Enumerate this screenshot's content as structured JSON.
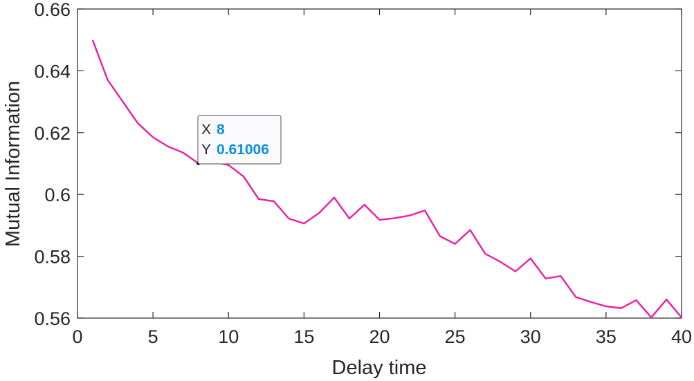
{
  "chart_data": {
    "type": "line",
    "title": "",
    "xlabel": "Delay time",
    "ylabel": "Mutual Information",
    "xlim": [
      0,
      40
    ],
    "ylim": [
      0.56,
      0.66
    ],
    "xticks": [
      0,
      5,
      10,
      15,
      20,
      25,
      30,
      35,
      40
    ],
    "xtick_labels": [
      "0",
      "5",
      "10",
      "15",
      "20",
      "25",
      "30",
      "35",
      "40"
    ],
    "yticks": [
      0.56,
      0.58,
      0.6,
      0.62,
      0.64,
      0.66
    ],
    "ytick_labels": [
      "0.56",
      "0.58",
      "0.6",
      "0.62",
      "0.64",
      "0.66"
    ],
    "grid": false,
    "series": [
      {
        "color": "#ec1ca4",
        "x": [
          1,
          2,
          3,
          4,
          5,
          6,
          7,
          8,
          9,
          10,
          11,
          12,
          13,
          14,
          15,
          16,
          17,
          18,
          19,
          20,
          21,
          22,
          23,
          24,
          25,
          26,
          27,
          28,
          29,
          30,
          31,
          32,
          33,
          34,
          35,
          36,
          37,
          38,
          39,
          40
        ],
        "y": [
          0.65,
          0.637,
          0.63,
          0.623,
          0.6185,
          0.6155,
          0.6135,
          0.61006,
          0.6105,
          0.6095,
          0.6058,
          0.5985,
          0.5978,
          0.5922,
          0.5906,
          0.594,
          0.599,
          0.5922,
          0.5967,
          0.5918,
          0.5923,
          0.5932,
          0.5948,
          0.5865,
          0.584,
          0.5885,
          0.5808,
          0.5782,
          0.5751,
          0.5793,
          0.5728,
          0.5736,
          0.5668,
          0.5652,
          0.5638,
          0.5632,
          0.5658,
          0.5602,
          0.566,
          0.5602
        ]
      }
    ],
    "datatip": {
      "x_key": "X",
      "x_value": "8",
      "y_key": "Y",
      "y_value": "0.61006",
      "point": {
        "x": 8,
        "y": 0.61006
      }
    }
  }
}
